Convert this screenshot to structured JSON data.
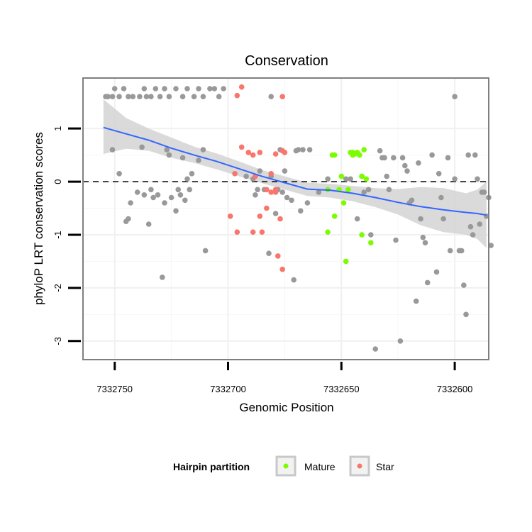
{
  "chart_data": {
    "type": "scatter",
    "title": "Conservation",
    "xlabel": "Genomic Position",
    "ylabel": "phyloP LRT conservation scores",
    "x_reversed": true,
    "xlim": [
      7332764,
      7332585
    ],
    "ylim": [
      -3.35,
      1.95
    ],
    "x_ticks": [
      7332750,
      7332700,
      7332650,
      7332600
    ],
    "x_tick_labels": [
      "7332750",
      "7332700",
      "7332650",
      "7332600"
    ],
    "y_ticks": [
      1,
      0,
      -1,
      -2,
      -3
    ],
    "y_tick_labels": [
      "1",
      "0",
      "-1",
      "-2",
      "-3"
    ],
    "grid": true,
    "reference_line": {
      "y": 0,
      "style": "dashed"
    },
    "legend": {
      "title": "Hairpin partition",
      "placement": "bottom",
      "entries": [
        {
          "name": "Mature",
          "color": "#7cfc00"
        },
        {
          "name": "Star",
          "color": "#f8766d"
        }
      ]
    },
    "colors": {
      "other": "#999999",
      "Mature": "#7cfc00",
      "Star": "#f8766d",
      "smooth": "#3366ff",
      "band": "#d3d3d3"
    },
    "series": [
      {
        "group": "other",
        "points": [
          [
            7332754,
            1.6
          ],
          [
            7332753,
            1.6
          ],
          [
            7332751,
            1.6
          ],
          [
            7332750,
            1.75
          ],
          [
            7332748,
            1.6
          ],
          [
            7332746,
            1.75
          ],
          [
            7332744,
            1.6
          ],
          [
            7332742,
            1.6
          ],
          [
            7332739,
            1.6
          ],
          [
            7332737,
            1.75
          ],
          [
            7332736,
            1.6
          ],
          [
            7332734,
            1.6
          ],
          [
            7332732,
            1.75
          ],
          [
            7332730,
            1.6
          ],
          [
            7332728,
            1.75
          ],
          [
            7332726,
            1.6
          ],
          [
            7332723,
            1.75
          ],
          [
            7332720,
            1.6
          ],
          [
            7332718,
            1.75
          ],
          [
            7332715,
            1.6
          ],
          [
            7332713,
            1.75
          ],
          [
            7332711,
            1.6
          ],
          [
            7332708,
            1.75
          ],
          [
            7332706,
            1.75
          ],
          [
            7332704,
            1.6
          ],
          [
            7332702,
            1.75
          ],
          [
            7332681,
            1.6
          ],
          [
            7332600,
            1.6
          ],
          [
            7332751,
            0.6
          ],
          [
            7332748,
            0.15
          ],
          [
            7332745,
            -0.75
          ],
          [
            7332744,
            -0.7
          ],
          [
            7332743,
            -0.4
          ],
          [
            7332740,
            -0.2
          ],
          [
            7332738,
            0.65
          ],
          [
            7332737,
            -0.25
          ],
          [
            7332735,
            -0.8
          ],
          [
            7332734,
            -0.15
          ],
          [
            7332733,
            -0.3
          ],
          [
            7332731,
            -0.25
          ],
          [
            7332729,
            -1.8
          ],
          [
            7332728,
            -0.4
          ],
          [
            7332727,
            0.6
          ],
          [
            7332726,
            0.5
          ],
          [
            7332725,
            -0.3
          ],
          [
            7332723,
            -0.55
          ],
          [
            7332722,
            -0.15
          ],
          [
            7332721,
            -0.25
          ],
          [
            7332720,
            0.45
          ],
          [
            7332719,
            -0.35
          ],
          [
            7332718,
            0.05
          ],
          [
            7332717,
            -0.15
          ],
          [
            7332716,
            0.15
          ],
          [
            7332713,
            0.4
          ],
          [
            7332711,
            0.6
          ],
          [
            7332710,
            -1.3
          ],
          [
            7332692,
            0.1
          ],
          [
            7332689,
            0.05
          ],
          [
            7332688,
            -0.25
          ],
          [
            7332687,
            -0.15
          ],
          [
            7332686,
            0.2
          ],
          [
            7332684,
            -0.15
          ],
          [
            7332682,
            -1.35
          ],
          [
            7332681,
            0.1
          ],
          [
            7332679,
            -0.6
          ],
          [
            7332678,
            -0.15
          ],
          [
            7332677,
            0.6
          ],
          [
            7332676,
            -0.2
          ],
          [
            7332675,
            0.2
          ],
          [
            7332674,
            -0.3
          ],
          [
            7332672,
            -0.35
          ],
          [
            7332671,
            -1.85
          ],
          [
            7332670,
            0.58
          ],
          [
            7332669,
            0.6
          ],
          [
            7332668,
            -0.55
          ],
          [
            7332667,
            0.6
          ],
          [
            7332665,
            -0.4
          ],
          [
            7332664,
            0.6
          ],
          [
            7332660,
            -0.2
          ],
          [
            7332656,
            0.05
          ],
          [
            7332648,
            0.05
          ],
          [
            7332646,
            0.05
          ],
          [
            7332643,
            -0.7
          ],
          [
            7332641,
            0.1
          ],
          [
            7332640,
            -0.2
          ],
          [
            7332638,
            -0.15
          ],
          [
            7332637,
            -1.0
          ],
          [
            7332635,
            -3.15
          ],
          [
            7332633,
            0.58
          ],
          [
            7332632,
            0.45
          ],
          [
            7332631,
            0.45
          ],
          [
            7332630,
            0.1
          ],
          [
            7332629,
            -0.15
          ],
          [
            7332627,
            0.45
          ],
          [
            7332626,
            -1.1
          ],
          [
            7332624,
            -3.0
          ],
          [
            7332623,
            0.45
          ],
          [
            7332622,
            0.3
          ],
          [
            7332621,
            0.2
          ],
          [
            7332620,
            -0.4
          ],
          [
            7332619,
            -0.35
          ],
          [
            7332617,
            -2.25
          ],
          [
            7332616,
            0.35
          ],
          [
            7332615,
            -0.7
          ],
          [
            7332614,
            -1.05
          ],
          [
            7332613,
            -1.15
          ],
          [
            7332612,
            -1.9
          ],
          [
            7332610,
            0.5
          ],
          [
            7332608,
            -1.7
          ],
          [
            7332607,
            0.15
          ],
          [
            7332606,
            -0.3
          ],
          [
            7332605,
            -0.7
          ],
          [
            7332603,
            0.45
          ],
          [
            7332602,
            -1.3
          ],
          [
            7332600,
            0.05
          ],
          [
            7332598,
            -1.3
          ],
          [
            7332597,
            -1.3
          ],
          [
            7332596,
            -1.95
          ],
          [
            7332595,
            -2.5
          ],
          [
            7332594,
            0.5
          ],
          [
            7332593,
            -0.85
          ],
          [
            7332592,
            -1.0
          ],
          [
            7332591,
            0.5
          ],
          [
            7332590,
            0.05
          ],
          [
            7332589,
            -0.8
          ],
          [
            7332588,
            -0.2
          ],
          [
            7332587,
            -0.2
          ],
          [
            7332586,
            -0.65
          ],
          [
            7332585,
            -0.3
          ],
          [
            7332584,
            -1.2
          ]
        ]
      },
      {
        "group": "Star",
        "points": [
          [
            7332696,
            1.62
          ],
          [
            7332694,
            1.78
          ],
          [
            7332676,
            1.6
          ],
          [
            7332694,
            0.65
          ],
          [
            7332691,
            0.55
          ],
          [
            7332689,
            0.5
          ],
          [
            7332686,
            0.55
          ],
          [
            7332679,
            0.52
          ],
          [
            7332676,
            0.58
          ],
          [
            7332675,
            0.55
          ],
          [
            7332697,
            0.15
          ],
          [
            7332688,
            0.1
          ],
          [
            7332681,
            0.15
          ],
          [
            7332679,
            -0.15
          ],
          [
            7332683,
            -0.15
          ],
          [
            7332681,
            -0.2
          ],
          [
            7332683,
            -0.5
          ],
          [
            7332679,
            -0.2
          ],
          [
            7332677,
            -0.7
          ],
          [
            7332686,
            -0.65
          ],
          [
            7332699,
            -0.65
          ],
          [
            7332696,
            -0.95
          ],
          [
            7332689,
            -0.95
          ],
          [
            7332685,
            -0.95
          ],
          [
            7332678,
            -1.4
          ],
          [
            7332676,
            -1.65
          ]
        ]
      },
      {
        "group": "Mature",
        "points": [
          [
            7332654,
            0.5
          ],
          [
            7332653,
            0.5
          ],
          [
            7332646,
            0.55
          ],
          [
            7332645,
            0.55
          ],
          [
            7332645,
            0.5
          ],
          [
            7332644,
            0.52
          ],
          [
            7332643,
            0.55
          ],
          [
            7332642,
            0.5
          ],
          [
            7332640,
            0.6
          ],
          [
            7332650,
            0.1
          ],
          [
            7332641,
            0.1
          ],
          [
            7332639,
            0.05
          ],
          [
            7332656,
            -0.15
          ],
          [
            7332651,
            -0.15
          ],
          [
            7332647,
            -0.15
          ],
          [
            7332649,
            -0.4
          ],
          [
            7332653,
            -0.65
          ],
          [
            7332656,
            -0.95
          ],
          [
            7332641,
            -1.0
          ],
          [
            7332637,
            -1.15
          ],
          [
            7332648,
            -1.5
          ]
        ]
      }
    ],
    "smooth": {
      "x": [
        7332755,
        7332745,
        7332735,
        7332725,
        7332715,
        7332705,
        7332695,
        7332685,
        7332675,
        7332665,
        7332655,
        7332645,
        7332635,
        7332625,
        7332615,
        7332605,
        7332595,
        7332590,
        7332586
      ],
      "y": [
        1.02,
        0.9,
        0.78,
        0.63,
        0.5,
        0.38,
        0.24,
        0.1,
        -0.02,
        -0.14,
        -0.16,
        -0.22,
        -0.3,
        -0.39,
        -0.47,
        -0.53,
        -0.58,
        -0.6,
        -0.63
      ],
      "upper": [
        1.55,
        1.2,
        1.0,
        0.83,
        0.66,
        0.53,
        0.38,
        0.22,
        0.1,
        -0.02,
        -0.04,
        -0.08,
        -0.12,
        -0.14,
        -0.1,
        -0.12,
        -0.22,
        -0.15,
        0.0
      ],
      "lower": [
        0.52,
        0.62,
        0.58,
        0.45,
        0.35,
        0.23,
        0.1,
        -0.03,
        -0.15,
        -0.27,
        -0.3,
        -0.37,
        -0.48,
        -0.62,
        -0.82,
        -0.95,
        -1.0,
        -1.08,
        -1.25
      ]
    }
  }
}
